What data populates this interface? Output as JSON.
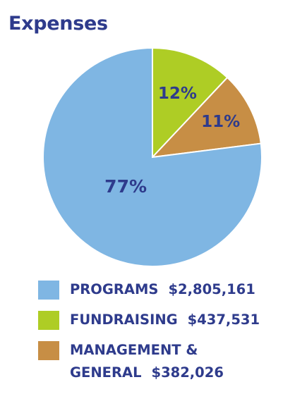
{
  "chart_data": {
    "type": "pie",
    "title": "Expenses",
    "slices": [
      {
        "label": "PROGRAMS",
        "amount": "$2,805,161",
        "percent": 77,
        "percent_label": "77%",
        "color": "#7fb6e3"
      },
      {
        "label": "FUNDRAISING",
        "amount": "$437,531",
        "percent": 12,
        "percent_label": "12%",
        "color": "#aecd25"
      },
      {
        "label": "MANAGEMENT & GENERAL",
        "label_line1": "MANAGEMENT &",
        "label_line2": "GENERAL",
        "amount": "$382,026",
        "percent": 11,
        "percent_label": "11%",
        "color": "#c78e45"
      }
    ],
    "legend_placement": "bottom"
  }
}
